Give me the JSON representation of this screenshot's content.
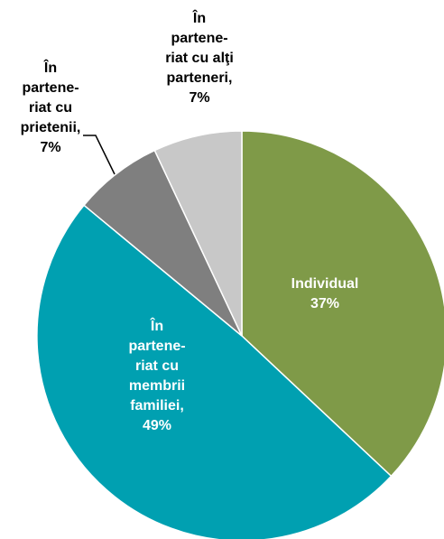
{
  "chart_data": {
    "type": "pie",
    "slices": [
      {
        "label_lines": [
          "Individual",
          "37%"
        ],
        "value": 37,
        "color": "#7F9A48"
      },
      {
        "label_lines": [
          "În",
          "partene-",
          "riat cu",
          "membrii",
          "familiei,",
          "49%"
        ],
        "value": 49,
        "color": "#00A0B1"
      },
      {
        "label_lines": [
          "În",
          "partene-",
          "riat cu",
          "prietenii,",
          "7%"
        ],
        "value": 7,
        "color": "#7F7F7F"
      },
      {
        "label_lines": [
          "În",
          "partene-",
          "riat cu alţi",
          "parteneri,",
          "7%"
        ],
        "value": 7,
        "color": "#C8C8C8"
      }
    ],
    "label_colors": {
      "inside": "#ffffff",
      "outside": "#000000"
    }
  }
}
